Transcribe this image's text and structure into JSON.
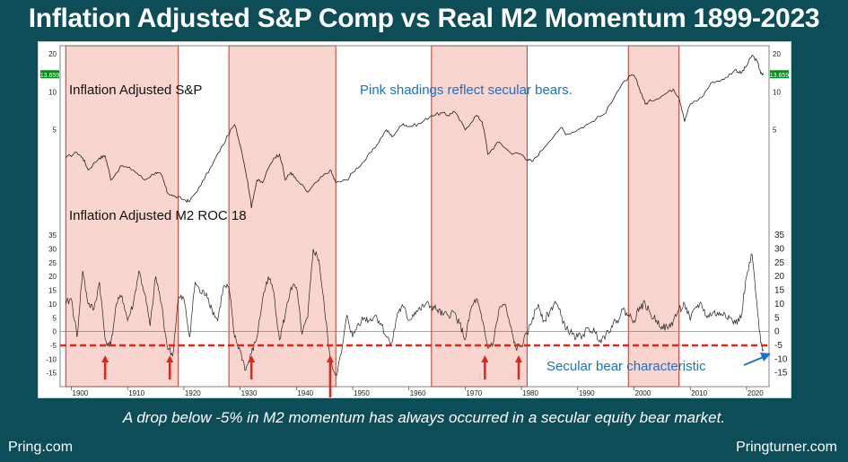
{
  "title": "Inflation Adjusted S&P Comp  vs Real M2  Momentum 1899-2023",
  "caption": "A drop below -5% in M2 momentum has always occurred in a secular equity bear market.",
  "footer": {
    "left": "Pring.com",
    "right": "Pringturner.com"
  },
  "colors": {
    "background": "#0c4d57",
    "shade_fill": "#f9d5cf",
    "shade_border": "#c0392b",
    "threshold_line": "#e0261b",
    "arrow": "#e0261b",
    "annotation": "#1f6fc1",
    "series": "#222222",
    "value_badge": "#0a8a1e"
  },
  "chart_data": {
    "type": "line",
    "xlim": [
      1898,
      2024
    ],
    "x_ticks": [
      "1900",
      "1910",
      "1920",
      "1930",
      "1940",
      "1950",
      "1960",
      "1970",
      "1980",
      "1990",
      "2000",
      "2010",
      "2020"
    ],
    "shadings": [
      [
        1899,
        1919
      ],
      [
        1928,
        1947
      ],
      [
        1964,
        1981
      ],
      [
        1999,
        2008
      ]
    ],
    "annotation_text": "Pink shadings reflect secular bears.",
    "upper_panel": {
      "label": "Inflation Adjusted S&P",
      "scale": "log",
      "ylim": [
        1.3,
        21
      ],
      "y_ticks": [
        "20",
        "10",
        "5"
      ],
      "last_value": "13.659",
      "points": [
        [
          1899,
          3.0
        ],
        [
          1901,
          3.3
        ],
        [
          1902,
          3.0
        ],
        [
          1903,
          2.4
        ],
        [
          1905,
          3.0
        ],
        [
          1906,
          3.1
        ],
        [
          1907,
          2.0
        ],
        [
          1909,
          2.6
        ],
        [
          1911,
          2.4
        ],
        [
          1913,
          2.0
        ],
        [
          1915,
          2.3
        ],
        [
          1916,
          2.2
        ],
        [
          1917,
          1.6
        ],
        [
          1918,
          1.5
        ],
        [
          1920,
          1.4
        ],
        [
          1921,
          1.35
        ],
        [
          1923,
          1.8
        ],
        [
          1925,
          2.6
        ],
        [
          1927,
          3.8
        ],
        [
          1929,
          5.5
        ],
        [
          1930,
          3.8
        ],
        [
          1931,
          2.3
        ],
        [
          1932,
          1.2
        ],
        [
          1933,
          2.0
        ],
        [
          1934,
          1.9
        ],
        [
          1936,
          3.0
        ],
        [
          1937,
          3.2
        ],
        [
          1938,
          2.0
        ],
        [
          1939,
          2.3
        ],
        [
          1940,
          2.0
        ],
        [
          1942,
          1.6
        ],
        [
          1944,
          2.0
        ],
        [
          1946,
          2.4
        ],
        [
          1947,
          1.9
        ],
        [
          1949,
          2.0
        ],
        [
          1950,
          2.3
        ],
        [
          1952,
          2.8
        ],
        [
          1954,
          3.6
        ],
        [
          1956,
          5.0
        ],
        [
          1957,
          4.4
        ],
        [
          1959,
          5.6
        ],
        [
          1960,
          5.3
        ],
        [
          1962,
          5.6
        ],
        [
          1964,
          6.5
        ],
        [
          1966,
          6.8
        ],
        [
          1967,
          6.5
        ],
        [
          1968,
          7.0
        ],
        [
          1970,
          5.0
        ],
        [
          1972,
          6.5
        ],
        [
          1973,
          5.8
        ],
        [
          1974,
          3.2
        ],
        [
          1976,
          4.0
        ],
        [
          1978,
          3.3
        ],
        [
          1980,
          3.2
        ],
        [
          1981,
          2.9
        ],
        [
          1982,
          2.8
        ],
        [
          1984,
          3.6
        ],
        [
          1987,
          5.2
        ],
        [
          1988,
          4.6
        ],
        [
          1990,
          5.0
        ],
        [
          1992,
          5.6
        ],
        [
          1995,
          6.8
        ],
        [
          1997,
          10.0
        ],
        [
          1999,
          13.0
        ],
        [
          2000,
          13.5
        ],
        [
          2001,
          10.5
        ],
        [
          2002,
          8.0
        ],
        [
          2003,
          8.5
        ],
        [
          2005,
          9.3
        ],
        [
          2007,
          10.5
        ],
        [
          2008,
          9.0
        ],
        [
          2009,
          5.8
        ],
        [
          2010,
          8.0
        ],
        [
          2012,
          9.0
        ],
        [
          2014,
          12.0
        ],
        [
          2016,
          12.5
        ],
        [
          2018,
          15.0
        ],
        [
          2019,
          14.0
        ],
        [
          2020,
          16.0
        ],
        [
          2021,
          19.5
        ],
        [
          2022,
          17.0
        ],
        [
          2022.5,
          14.0
        ],
        [
          2023,
          13.66
        ]
      ]
    },
    "lower_panel": {
      "label": "Inflation Adjusted M2 ROC 18",
      "ylim": [
        -20,
        38
      ],
      "y_ticks": [
        "35",
        "30",
        "25",
        "20",
        "15",
        "10",
        "5",
        "0",
        "-5",
        "-10",
        "-15"
      ],
      "threshold": -5,
      "annotation_text": "Secular bear characteristic",
      "red_arrows_years": [
        1906,
        1917.5,
        1932,
        1946,
        1973.5,
        1979.5
      ],
      "points": [
        [
          1899,
          10
        ],
        [
          1900,
          12
        ],
        [
          1901,
          -2
        ],
        [
          1902,
          22
        ],
        [
          1903,
          10
        ],
        [
          1904,
          8
        ],
        [
          1905,
          18
        ],
        [
          1906,
          -3
        ],
        [
          1907,
          -5
        ],
        [
          1908,
          10
        ],
        [
          1909,
          13
        ],
        [
          1910,
          4
        ],
        [
          1911,
          10
        ],
        [
          1912,
          22
        ],
        [
          1913,
          14
        ],
        [
          1914,
          2
        ],
        [
          1915,
          20
        ],
        [
          1916,
          10
        ],
        [
          1917,
          -5
        ],
        [
          1918,
          -9
        ],
        [
          1919,
          12
        ],
        [
          1920,
          12
        ],
        [
          1921,
          -2
        ],
        [
          1922,
          18
        ],
        [
          1923,
          14
        ],
        [
          1924,
          14
        ],
        [
          1925,
          8
        ],
        [
          1926,
          4
        ],
        [
          1927,
          16
        ],
        [
          1928,
          16
        ],
        [
          1929,
          -2
        ],
        [
          1930,
          -7
        ],
        [
          1931,
          -14
        ],
        [
          1932,
          -8
        ],
        [
          1933,
          -2
        ],
        [
          1934,
          12
        ],
        [
          1935,
          20
        ],
        [
          1936,
          14
        ],
        [
          1937,
          -3
        ],
        [
          1938,
          6
        ],
        [
          1939,
          16
        ],
        [
          1940,
          16
        ],
        [
          1941,
          -1
        ],
        [
          1942,
          5
        ],
        [
          1943,
          30
        ],
        [
          1944,
          26
        ],
        [
          1945,
          8
        ],
        [
          1946,
          -10
        ],
        [
          1947,
          -16
        ],
        [
          1948,
          -8
        ],
        [
          1949,
          6
        ],
        [
          1950,
          -2
        ],
        [
          1951,
          3
        ],
        [
          1952,
          5
        ],
        [
          1953,
          4
        ],
        [
          1954,
          6
        ],
        [
          1955,
          3
        ],
        [
          1956,
          -2
        ],
        [
          1957,
          -4
        ],
        [
          1958,
          7
        ],
        [
          1959,
          9
        ],
        [
          1960,
          4
        ],
        [
          1961,
          7
        ],
        [
          1962,
          8
        ],
        [
          1963,
          10
        ],
        [
          1964,
          9
        ],
        [
          1965,
          8
        ],
        [
          1966,
          6
        ],
        [
          1967,
          6
        ],
        [
          1968,
          7
        ],
        [
          1969,
          3
        ],
        [
          1970,
          -3
        ],
        [
          1971,
          8
        ],
        [
          1972,
          12
        ],
        [
          1973,
          4
        ],
        [
          1974,
          -6
        ],
        [
          1975,
          -4
        ],
        [
          1976,
          8
        ],
        [
          1977,
          10
        ],
        [
          1978,
          2
        ],
        [
          1979,
          -6
        ],
        [
          1980,
          -5
        ],
        [
          1981,
          -1
        ],
        [
          1982,
          5
        ],
        [
          1983,
          10
        ],
        [
          1984,
          4
        ],
        [
          1985,
          7
        ],
        [
          1986,
          11
        ],
        [
          1987,
          6
        ],
        [
          1988,
          1
        ],
        [
          1989,
          -1
        ],
        [
          1990,
          -2
        ],
        [
          1991,
          -1
        ],
        [
          1992,
          1
        ],
        [
          1993,
          0
        ],
        [
          1994,
          -3
        ],
        [
          1995,
          -1
        ],
        [
          1996,
          2
        ],
        [
          1997,
          4
        ],
        [
          1998,
          8
        ],
        [
          1999,
          6
        ],
        [
          2000,
          4
        ],
        [
          2001,
          9
        ],
        [
          2002,
          10
        ],
        [
          2003,
          6
        ],
        [
          2004,
          4
        ],
        [
          2005,
          2
        ],
        [
          2006,
          1
        ],
        [
          2007,
          4
        ],
        [
          2008,
          8
        ],
        [
          2009,
          10
        ],
        [
          2010,
          4
        ],
        [
          2011,
          9
        ],
        [
          2012,
          10
        ],
        [
          2013,
          5
        ],
        [
          2014,
          7
        ],
        [
          2015,
          6
        ],
        [
          2016,
          7
        ],
        [
          2017,
          5
        ],
        [
          2018,
          3
        ],
        [
          2019,
          5
        ],
        [
          2020,
          20
        ],
        [
          2021,
          28
        ],
        [
          2022,
          6
        ],
        [
          2022.5,
          -4
        ],
        [
          2023,
          -7
        ]
      ]
    }
  }
}
